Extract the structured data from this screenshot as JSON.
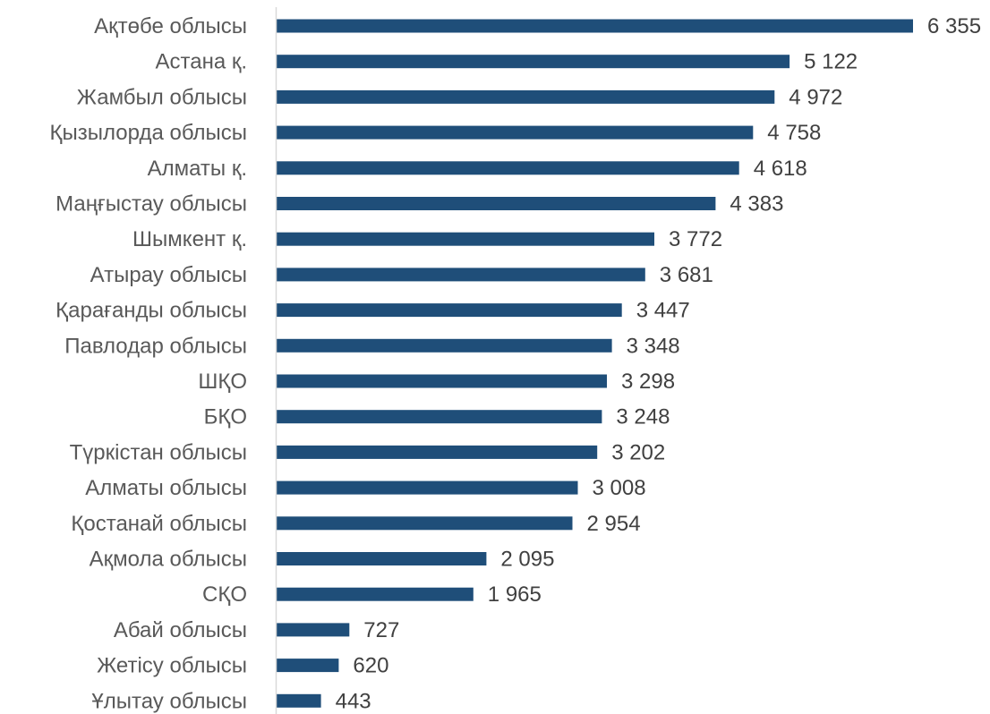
{
  "chart_data": {
    "type": "bar",
    "orientation": "horizontal",
    "categories": [
      "Ақтөбе облысы",
      "Астана қ.",
      "Жамбыл облысы",
      "Қызылорда облысы",
      "Алматы қ.",
      "Маңғыстау облысы",
      "Шымкент қ.",
      "Атырау облысы",
      "Қарағанды облысы",
      "Павлодар облысы",
      "ШҚО",
      "БҚО",
      "Түркістан облысы",
      "Алматы облысы",
      "Қостанай облысы",
      "Ақмола облысы",
      "СҚО",
      "Абай облысы",
      "Жетісу облысы",
      "Ұлытау облысы"
    ],
    "values": [
      6355,
      5122,
      4972,
      4758,
      4618,
      4383,
      3772,
      3681,
      3447,
      3348,
      3298,
      3248,
      3202,
      3008,
      2954,
      2095,
      1965,
      727,
      620,
      443
    ],
    "value_labels": [
      "6 355",
      "5 122",
      "4 972",
      "4 758",
      "4 618",
      "4 383",
      "3 772",
      "3 681",
      "3 447",
      "3 348",
      "3 298",
      "3 248",
      "3 202",
      "3 008",
      "2 954",
      "2 095",
      "1 965",
      "727",
      "620",
      "443"
    ],
    "title": "",
    "xlabel": "",
    "ylabel": "",
    "xlim": [
      0,
      6355
    ],
    "grid": false,
    "legend": "none",
    "bar_color": "#1F4E79",
    "axis_color": "#D9D9D9"
  }
}
